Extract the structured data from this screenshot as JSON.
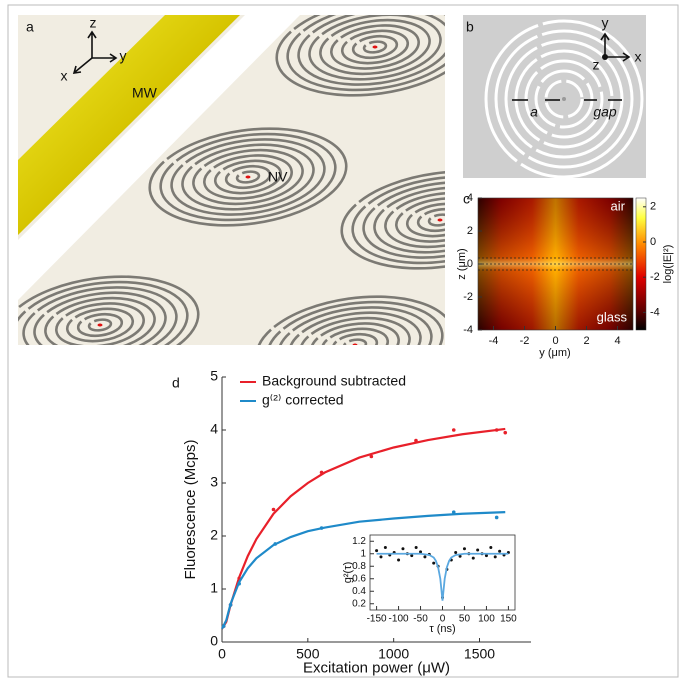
{
  "panel_labels": [
    "a",
    "b",
    "c",
    "d"
  ],
  "panel_a": {
    "axes": [
      "z",
      "y",
      "x"
    ],
    "mw_label": "MW",
    "nv_label": "NV"
  },
  "panel_b": {
    "axes": [
      "y",
      "x",
      "z"
    ],
    "a_label": "a",
    "gap_label": "gap"
  },
  "panel_c": {
    "xlabel": "y (μm)",
    "ylabel": "z (μm)",
    "xlim": [
      -5,
      5
    ],
    "xticks": [
      -4,
      -2,
      0,
      2,
      4
    ],
    "ylim": [
      -4,
      4
    ],
    "yticks": [
      4,
      2,
      0,
      -2,
      -4
    ],
    "colorbar_label": "log(|E|²)",
    "clim": [
      -5,
      2.5
    ],
    "colorbar_ticks": [
      2,
      0,
      -2,
      -4
    ],
    "top_label": "air",
    "bottom_label": "glass"
  },
  "chart_data": [
    {
      "type": "line",
      "xlabel": "Excitation power (μW)",
      "ylabel": "Fluorescence (Mcps)",
      "xlim": [
        0,
        1800
      ],
      "xticks": [
        0,
        500,
        1000,
        1500
      ],
      "ylim": [
        0,
        5
      ],
      "yticks": [
        0,
        1,
        2,
        3,
        4,
        5
      ],
      "legend": "upper left",
      "x": [
        0,
        25,
        50,
        100,
        150,
        200,
        300,
        400,
        500,
        600,
        800,
        1000,
        1200,
        1400,
        1650
      ],
      "series": [
        {
          "name": "Background subtracted",
          "color": "#e8202a",
          "values": [
            0.25,
            0.38,
            0.7,
            1.22,
            1.62,
            1.94,
            2.42,
            2.75,
            3.0,
            3.2,
            3.48,
            3.67,
            3.81,
            3.92,
            4.02
          ],
          "markers": {
            "x": [
              10,
              50,
              100,
              300,
              580,
              870,
              1130,
              1350,
              1600,
              1650
            ],
            "values": [
              0.3,
              0.7,
              1.2,
              2.5,
              3.2,
              3.5,
              3.8,
              4.0,
              4.0,
              3.95
            ]
          }
        },
        {
          "name": "g⁽²⁾ corrected",
          "color": "#1f8ac9",
          "values": [
            0.25,
            0.41,
            0.72,
            1.13,
            1.39,
            1.58,
            1.83,
            1.98,
            2.09,
            2.16,
            2.27,
            2.33,
            2.38,
            2.42,
            2.45
          ],
          "markers": {
            "x": [
              10,
              50,
              100,
              310,
              580,
              1350,
              1600
            ],
            "values": [
              0.3,
              0.7,
              1.1,
              1.85,
              2.15,
              2.45,
              2.35
            ]
          }
        }
      ]
    },
    {
      "type": "scatter",
      "xlabel": "τ (ns)",
      "ylabel": "g²(τ)",
      "xlim": [
        -165,
        165
      ],
      "xticks": [
        -150,
        -100,
        -50,
        0,
        50,
        100,
        150
      ],
      "ylim": [
        0.1,
        1.3
      ],
      "yticks": [
        1.2,
        1,
        0.8,
        0.6,
        0.4,
        0.2
      ],
      "x": [
        -150,
        -140,
        -130,
        -120,
        -110,
        -100,
        -90,
        -80,
        -70,
        -60,
        -50,
        -40,
        -30,
        -20,
        -10,
        0,
        10,
        20,
        30,
        40,
        50,
        60,
        70,
        80,
        90,
        100,
        110,
        120,
        130,
        140,
        150
      ],
      "values": [
        1.05,
        0.95,
        1.1,
        0.98,
        1.02,
        0.9,
        1.08,
        1.0,
        0.97,
        1.1,
        1.03,
        0.95,
        0.99,
        0.85,
        0.8,
        0.3,
        0.75,
        0.9,
        1.02,
        0.96,
        1.08,
        1.0,
        0.93,
        1.06,
        1.0,
        0.97,
        1.1,
        0.95,
        1.04,
        0.98,
        1.02
      ],
      "color": "#111111",
      "fit": {
        "color": "#5aa8e0",
        "x": [
          -150,
          -100,
          -50,
          -30,
          -20,
          -15,
          -10,
          -5,
          0,
          5,
          10,
          15,
          20,
          30,
          50,
          100,
          150
        ],
        "values": [
          1.0,
          1.0,
          1.0,
          0.98,
          0.94,
          0.885,
          0.785,
          0.6,
          0.25,
          0.6,
          0.785,
          0.885,
          0.94,
          0.98,
          1.0,
          1.0,
          1.0
        ]
      }
    }
  ]
}
